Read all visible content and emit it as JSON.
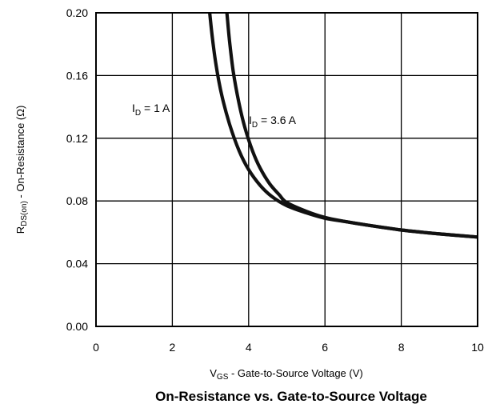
{
  "chart_data": {
    "type": "line",
    "title": "On-Resistance vs. Gate-to-Source Voltage",
    "xlabel": {
      "main": "V",
      "sub": "GS",
      "rest": " -  Gate-to-Source Voltage (V)"
    },
    "ylabel": {
      "main": "R",
      "sub": "DS(on)",
      "rest": " - On-Resistance (Ω)"
    },
    "xlim": [
      0,
      10
    ],
    "ylim": [
      0,
      0.2
    ],
    "xticks": [
      0,
      2,
      4,
      6,
      8,
      10
    ],
    "yticks": [
      0.0,
      0.04,
      0.08,
      0.12,
      0.16,
      0.2
    ],
    "xtick_labels": [
      "0",
      "2",
      "4",
      "6",
      "8",
      "10"
    ],
    "ytick_labels": [
      "0.00",
      "0.04",
      "0.08",
      "0.12",
      "0.16",
      "0.20"
    ],
    "grid": true,
    "series": [
      {
        "name": "ID = 1 A",
        "label": {
          "main": "I",
          "sub": "D",
          "rest": " = 1 A"
        },
        "x": [
          2.98,
          3.05,
          3.15,
          3.3,
          3.5,
          3.75,
          4.0,
          4.3,
          4.6,
          5.0,
          5.5,
          6.0,
          6.5,
          7.0,
          8.0,
          9.0,
          10.0
        ],
        "y": [
          0.2,
          0.184,
          0.166,
          0.147,
          0.129,
          0.112,
          0.1,
          0.09,
          0.083,
          0.077,
          0.0725,
          0.069,
          0.067,
          0.065,
          0.0615,
          0.059,
          0.057
        ]
      },
      {
        "name": "ID = 3.6 A",
        "label": {
          "main": "I",
          "sub": "D",
          "rest": " = 3.6 A"
        },
        "x": [
          3.43,
          3.5,
          3.6,
          3.75,
          3.9,
          4.1,
          4.3,
          4.55,
          4.8,
          5.0,
          5.5,
          6.0,
          6.5,
          7.0,
          8.0,
          9.0,
          10.0
        ],
        "y": [
          0.2,
          0.182,
          0.162,
          0.142,
          0.127,
          0.112,
          0.101,
          0.091,
          0.084,
          0.079,
          0.0735,
          0.0695,
          0.067,
          0.065,
          0.0615,
          0.059,
          0.057
        ]
      }
    ],
    "line_color": "#111111"
  }
}
